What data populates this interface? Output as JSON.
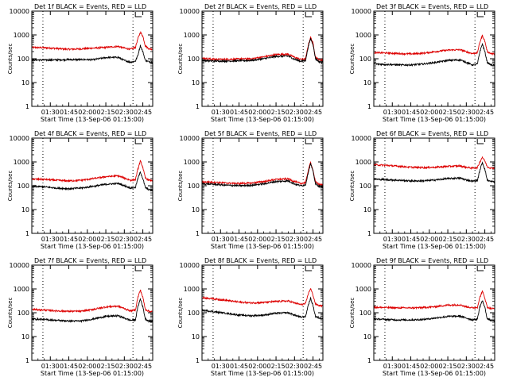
{
  "figure": {
    "ylabel": "Counts/sec",
    "xlabel": "Start Time (13-Sep-06 01:15:00)",
    "black_color": "#000000",
    "red_color": "#dd0000"
  },
  "chart_data": [
    {
      "type": "line",
      "title": "Det 1f BLACK = Events, RED = LLD",
      "xlabel": "Start Time (13-Sep-06 01:15:00)",
      "ylabel": "Counts/sec",
      "x_ticks": [
        "01:30",
        "01:45",
        "02:00",
        "02:15",
        "02:30",
        "02:45"
      ],
      "x_tick_minutes": [
        15,
        30,
        45,
        60,
        75,
        90
      ],
      "xlim_minutes": [
        0,
        98
      ],
      "y_scale": "log",
      "ylim": [
        1,
        10000
      ],
      "y_ticks": [
        1,
        10,
        100,
        1000,
        10000
      ],
      "dotted_vlines_minutes": [
        9,
        82
      ],
      "series": [
        {
          "name": "Events",
          "color": "#000000",
          "x_minutes": [
            0,
            10,
            20,
            30,
            40,
            50,
            60,
            70,
            75,
            80,
            84,
            86,
            88,
            90,
            92,
            95,
            98
          ],
          "values": [
            90,
            88,
            90,
            92,
            92,
            92,
            112,
            115,
            85,
            72,
            80,
            140,
            360,
            200,
            85,
            75,
            70
          ]
        },
        {
          "name": "LLD",
          "color": "#dd0000",
          "x_minutes": [
            0,
            10,
            20,
            30,
            40,
            50,
            60,
            70,
            75,
            80,
            84,
            86,
            88,
            90,
            92,
            95,
            98
          ],
          "values": [
            300,
            290,
            270,
            250,
            260,
            280,
            300,
            330,
            280,
            250,
            300,
            700,
            1300,
            900,
            350,
            260,
            255
          ]
        }
      ]
    },
    {
      "type": "line",
      "title": "Det 2f BLACK = Events, RED = LLD",
      "xlabel": "Start Time (13-Sep-06 01:15:00)",
      "ylabel": "Counts/sec",
      "x_ticks": [
        "01:30",
        "01:45",
        "02:00",
        "02:15",
        "02:30",
        "02:45"
      ],
      "x_tick_minutes": [
        15,
        30,
        45,
        60,
        75,
        90
      ],
      "xlim_minutes": [
        0,
        98
      ],
      "y_scale": "log",
      "ylim": [
        1,
        10000
      ],
      "y_ticks": [
        1,
        10,
        100,
        1000,
        10000
      ],
      "dotted_vlines_minutes": [
        9,
        82
      ],
      "series": [
        {
          "name": "Events",
          "color": "#000000",
          "x_minutes": [
            0,
            10,
            20,
            30,
            40,
            50,
            60,
            70,
            75,
            80,
            84,
            86,
            88,
            90,
            92,
            95,
            98
          ],
          "values": [
            85,
            80,
            80,
            82,
            85,
            100,
            125,
            130,
            95,
            78,
            85,
            300,
            700,
            400,
            100,
            75,
            72
          ]
        },
        {
          "name": "LLD",
          "color": "#dd0000",
          "x_minutes": [
            0,
            10,
            20,
            30,
            40,
            50,
            60,
            70,
            75,
            80,
            84,
            86,
            88,
            90,
            92,
            95,
            98
          ],
          "values": [
            105,
            95,
            95,
            98,
            100,
            120,
            150,
            155,
            115,
            95,
            100,
            350,
            800,
            450,
            115,
            90,
            88
          ]
        }
      ]
    },
    {
      "type": "line",
      "title": "Det 3f BLACK = Events, RED = LLD",
      "xlabel": "Start Time (13-Sep-06 01:15:00)",
      "ylabel": "Counts/sec",
      "x_ticks": [
        "01:30",
        "01:45",
        "02:00",
        "02:15",
        "02:30",
        "02:45"
      ],
      "x_tick_minutes": [
        15,
        30,
        45,
        60,
        75,
        90
      ],
      "xlim_minutes": [
        0,
        98
      ],
      "y_scale": "log",
      "ylim": [
        1,
        10000
      ],
      "y_ticks": [
        1,
        10,
        100,
        1000,
        10000
      ],
      "dotted_vlines_minutes": [
        9,
        82
      ],
      "series": [
        {
          "name": "Events",
          "color": "#000000",
          "x_minutes": [
            0,
            10,
            20,
            30,
            40,
            50,
            60,
            70,
            75,
            80,
            84,
            86,
            88,
            90,
            92,
            95,
            98
          ],
          "values": [
            60,
            58,
            55,
            55,
            60,
            70,
            85,
            90,
            70,
            55,
            60,
            200,
            420,
            200,
            70,
            55,
            52
          ]
        },
        {
          "name": "LLD",
          "color": "#dd0000",
          "x_minutes": [
            0,
            10,
            20,
            30,
            40,
            50,
            60,
            70,
            75,
            80,
            84,
            86,
            88,
            90,
            92,
            95,
            98
          ],
          "values": [
            180,
            175,
            165,
            160,
            170,
            200,
            230,
            240,
            195,
            165,
            180,
            500,
            950,
            550,
            200,
            165,
            160
          ]
        }
      ]
    },
    {
      "type": "line",
      "title": "Det 4f BLACK = Events, RED = LLD",
      "xlabel": "Start Time (13-Sep-06 01:15:00)",
      "ylabel": "Counts/sec",
      "x_ticks": [
        "01:30",
        "01:45",
        "02:00",
        "02:15",
        "02:30",
        "02:45"
      ],
      "x_tick_minutes": [
        15,
        30,
        45,
        60,
        75,
        90
      ],
      "xlim_minutes": [
        0,
        98
      ],
      "y_scale": "log",
      "ylim": [
        1,
        10000
      ],
      "y_ticks": [
        1,
        10,
        100,
        1000,
        10000
      ],
      "dotted_vlines_minutes": [
        9,
        82
      ],
      "series": [
        {
          "name": "Events",
          "color": "#000000",
          "x_minutes": [
            0,
            10,
            20,
            30,
            40,
            50,
            60,
            70,
            75,
            80,
            84,
            86,
            88,
            90,
            92,
            95,
            98
          ],
          "values": [
            95,
            90,
            80,
            75,
            80,
            95,
            115,
            125,
            100,
            80,
            85,
            200,
            380,
            200,
            85,
            68,
            65
          ]
        },
        {
          "name": "LLD",
          "color": "#dd0000",
          "x_minutes": [
            0,
            10,
            20,
            30,
            40,
            50,
            60,
            70,
            75,
            80,
            84,
            86,
            88,
            90,
            92,
            95,
            98
          ],
          "values": [
            190,
            185,
            170,
            160,
            170,
            200,
            240,
            260,
            210,
            170,
            180,
            500,
            1100,
            600,
            210,
            170,
            165
          ]
        }
      ]
    },
    {
      "type": "line",
      "title": "Det 5f BLACK = Events, RED = LLD",
      "xlabel": "Start Time (13-Sep-06 01:15:00)",
      "ylabel": "Counts/sec",
      "x_ticks": [
        "01:30",
        "01:45",
        "02:00",
        "02:15",
        "02:30",
        "02:45"
      ],
      "x_tick_minutes": [
        15,
        30,
        45,
        60,
        75,
        90
      ],
      "xlim_minutes": [
        0,
        98
      ],
      "y_scale": "log",
      "ylim": [
        1,
        10000
      ],
      "y_ticks": [
        1,
        10,
        100,
        1000,
        10000
      ],
      "dotted_vlines_minutes": [
        9,
        82
      ],
      "series": [
        {
          "name": "Events",
          "color": "#000000",
          "x_minutes": [
            0,
            10,
            20,
            30,
            40,
            50,
            60,
            70,
            75,
            80,
            84,
            86,
            88,
            90,
            92,
            95,
            98
          ],
          "values": [
            120,
            115,
            105,
            100,
            105,
            120,
            150,
            160,
            120,
            100,
            110,
            350,
            850,
            400,
            120,
            95,
            92
          ]
        },
        {
          "name": "LLD",
          "color": "#dd0000",
          "x_minutes": [
            0,
            10,
            20,
            30,
            40,
            50,
            60,
            70,
            75,
            80,
            84,
            86,
            88,
            90,
            92,
            95,
            98
          ],
          "values": [
            145,
            140,
            130,
            125,
            130,
            150,
            185,
            195,
            150,
            125,
            135,
            420,
            950,
            450,
            145,
            115,
            110
          ]
        }
      ]
    },
    {
      "type": "line",
      "title": "Det 6f BLACK = Events, RED = LLD",
      "xlabel": "Start Time (13-Sep-06 01:15:00)",
      "ylabel": "Counts/sec",
      "x_ticks": [
        "01:30",
        "01:45",
        "02:00",
        "02:15",
        "02:30",
        "02:45"
      ],
      "x_tick_minutes": [
        15,
        30,
        45,
        60,
        75,
        90
      ],
      "xlim_minutes": [
        0,
        98
      ],
      "y_scale": "log",
      "ylim": [
        1,
        10000
      ],
      "y_ticks": [
        1,
        10,
        100,
        1000,
        10000
      ],
      "dotted_vlines_minutes": [
        9,
        82
      ],
      "series": [
        {
          "name": "Events",
          "color": "#000000",
          "x_minutes": [
            0,
            10,
            20,
            30,
            40,
            50,
            60,
            70,
            75,
            80,
            84,
            86,
            88,
            90,
            92,
            95,
            98
          ],
          "values": [
            190,
            180,
            170,
            160,
            160,
            175,
            200,
            210,
            175,
            155,
            165,
            450,
            950,
            500,
            170,
            150,
            148
          ]
        },
        {
          "name": "LLD",
          "color": "#dd0000",
          "x_minutes": [
            0,
            10,
            20,
            30,
            40,
            50,
            60,
            70,
            75,
            80,
            84,
            86,
            88,
            90,
            92,
            95,
            98
          ],
          "values": [
            760,
            720,
            660,
            600,
            580,
            600,
            650,
            680,
            600,
            550,
            580,
            1000,
            1600,
            1100,
            620,
            560,
            550
          ]
        }
      ]
    },
    {
      "type": "line",
      "title": "Det 7f BLACK = Events, RED = LLD",
      "xlabel": "Start Time (13-Sep-06 01:15:00)",
      "ylabel": "Counts/sec",
      "x_ticks": [
        "01:30",
        "01:45",
        "02:00",
        "02:15",
        "02:30",
        "02:45"
      ],
      "x_tick_minutes": [
        15,
        30,
        45,
        60,
        75,
        90
      ],
      "xlim_minutes": [
        0,
        98
      ],
      "y_scale": "log",
      "ylim": [
        1,
        10000
      ],
      "y_ticks": [
        1,
        10,
        100,
        1000,
        10000
      ],
      "dotted_vlines_minutes": [
        9,
        82
      ],
      "series": [
        {
          "name": "Events",
          "color": "#000000",
          "x_minutes": [
            0,
            10,
            20,
            30,
            40,
            50,
            60,
            70,
            75,
            80,
            84,
            86,
            88,
            90,
            92,
            95,
            98
          ],
          "values": [
            55,
            52,
            48,
            45,
            45,
            55,
            70,
            75,
            60,
            48,
            50,
            180,
            380,
            180,
            55,
            45,
            43
          ]
        },
        {
          "name": "LLD",
          "color": "#dd0000",
          "x_minutes": [
            0,
            10,
            20,
            30,
            40,
            50,
            60,
            70,
            75,
            80,
            84,
            86,
            88,
            90,
            92,
            95,
            98
          ],
          "values": [
            140,
            130,
            120,
            115,
            115,
            140,
            175,
            190,
            150,
            120,
            130,
            450,
            900,
            450,
            140,
            115,
            110
          ]
        }
      ]
    },
    {
      "type": "line",
      "title": "Det 8f BLACK = Events, RED = LLD",
      "xlabel": "Start Time (13-Sep-06 01:15:00)",
      "ylabel": "Counts/sec",
      "x_ticks": [
        "01:30",
        "01:45",
        "02:00",
        "02:15",
        "02:30",
        "02:45"
      ],
      "x_tick_minutes": [
        15,
        30,
        45,
        60,
        75,
        90
      ],
      "xlim_minutes": [
        0,
        98
      ],
      "y_scale": "log",
      "ylim": [
        1,
        10000
      ],
      "y_ticks": [
        1,
        10,
        100,
        1000,
        10000
      ],
      "dotted_vlines_minutes": [
        9,
        82
      ],
      "series": [
        {
          "name": "Events",
          "color": "#000000",
          "x_minutes": [
            0,
            10,
            20,
            30,
            40,
            50,
            60,
            70,
            75,
            80,
            84,
            86,
            88,
            90,
            92,
            95,
            98
          ],
          "values": [
            130,
            110,
            95,
            80,
            75,
            80,
            95,
            100,
            80,
            65,
            70,
            200,
            400,
            200,
            70,
            60,
            58
          ]
        },
        {
          "name": "LLD",
          "color": "#dd0000",
          "x_minutes": [
            0,
            10,
            20,
            30,
            40,
            50,
            60,
            70,
            75,
            80,
            84,
            86,
            88,
            90,
            92,
            95,
            98
          ],
          "values": [
            430,
            380,
            330,
            280,
            260,
            270,
            300,
            310,
            260,
            220,
            240,
            600,
            1050,
            550,
            230,
            200,
            195
          ]
        }
      ]
    },
    {
      "type": "line",
      "title": "Det 9f BLACK = Events, RED = LLD",
      "xlabel": "Start Time (13-Sep-06 01:15:00)",
      "ylabel": "Counts/sec",
      "x_ticks": [
        "01:30",
        "01:45",
        "02:00",
        "02:15",
        "02:30",
        "02:45"
      ],
      "x_tick_minutes": [
        15,
        30,
        45,
        60,
        75,
        90
      ],
      "xlim_minutes": [
        0,
        98
      ],
      "y_scale": "log",
      "ylim": [
        1,
        10000
      ],
      "y_ticks": [
        1,
        10,
        100,
        1000,
        10000
      ],
      "dotted_vlines_minutes": [
        9,
        82
      ],
      "series": [
        {
          "name": "Events",
          "color": "#000000",
          "x_minutes": [
            0,
            10,
            20,
            30,
            40,
            50,
            60,
            70,
            75,
            80,
            84,
            86,
            88,
            90,
            92,
            95,
            98
          ],
          "values": [
            55,
            52,
            50,
            50,
            52,
            60,
            70,
            72,
            60,
            50,
            55,
            180,
            320,
            170,
            55,
            48,
            46
          ]
        },
        {
          "name": "LLD",
          "color": "#dd0000",
          "x_minutes": [
            0,
            10,
            20,
            30,
            40,
            50,
            60,
            70,
            75,
            80,
            84,
            86,
            88,
            90,
            92,
            95,
            98
          ],
          "values": [
            170,
            165,
            160,
            160,
            165,
            180,
            210,
            215,
            180,
            160,
            170,
            450,
            800,
            420,
            170,
            150,
            148
          ]
        }
      ]
    }
  ]
}
